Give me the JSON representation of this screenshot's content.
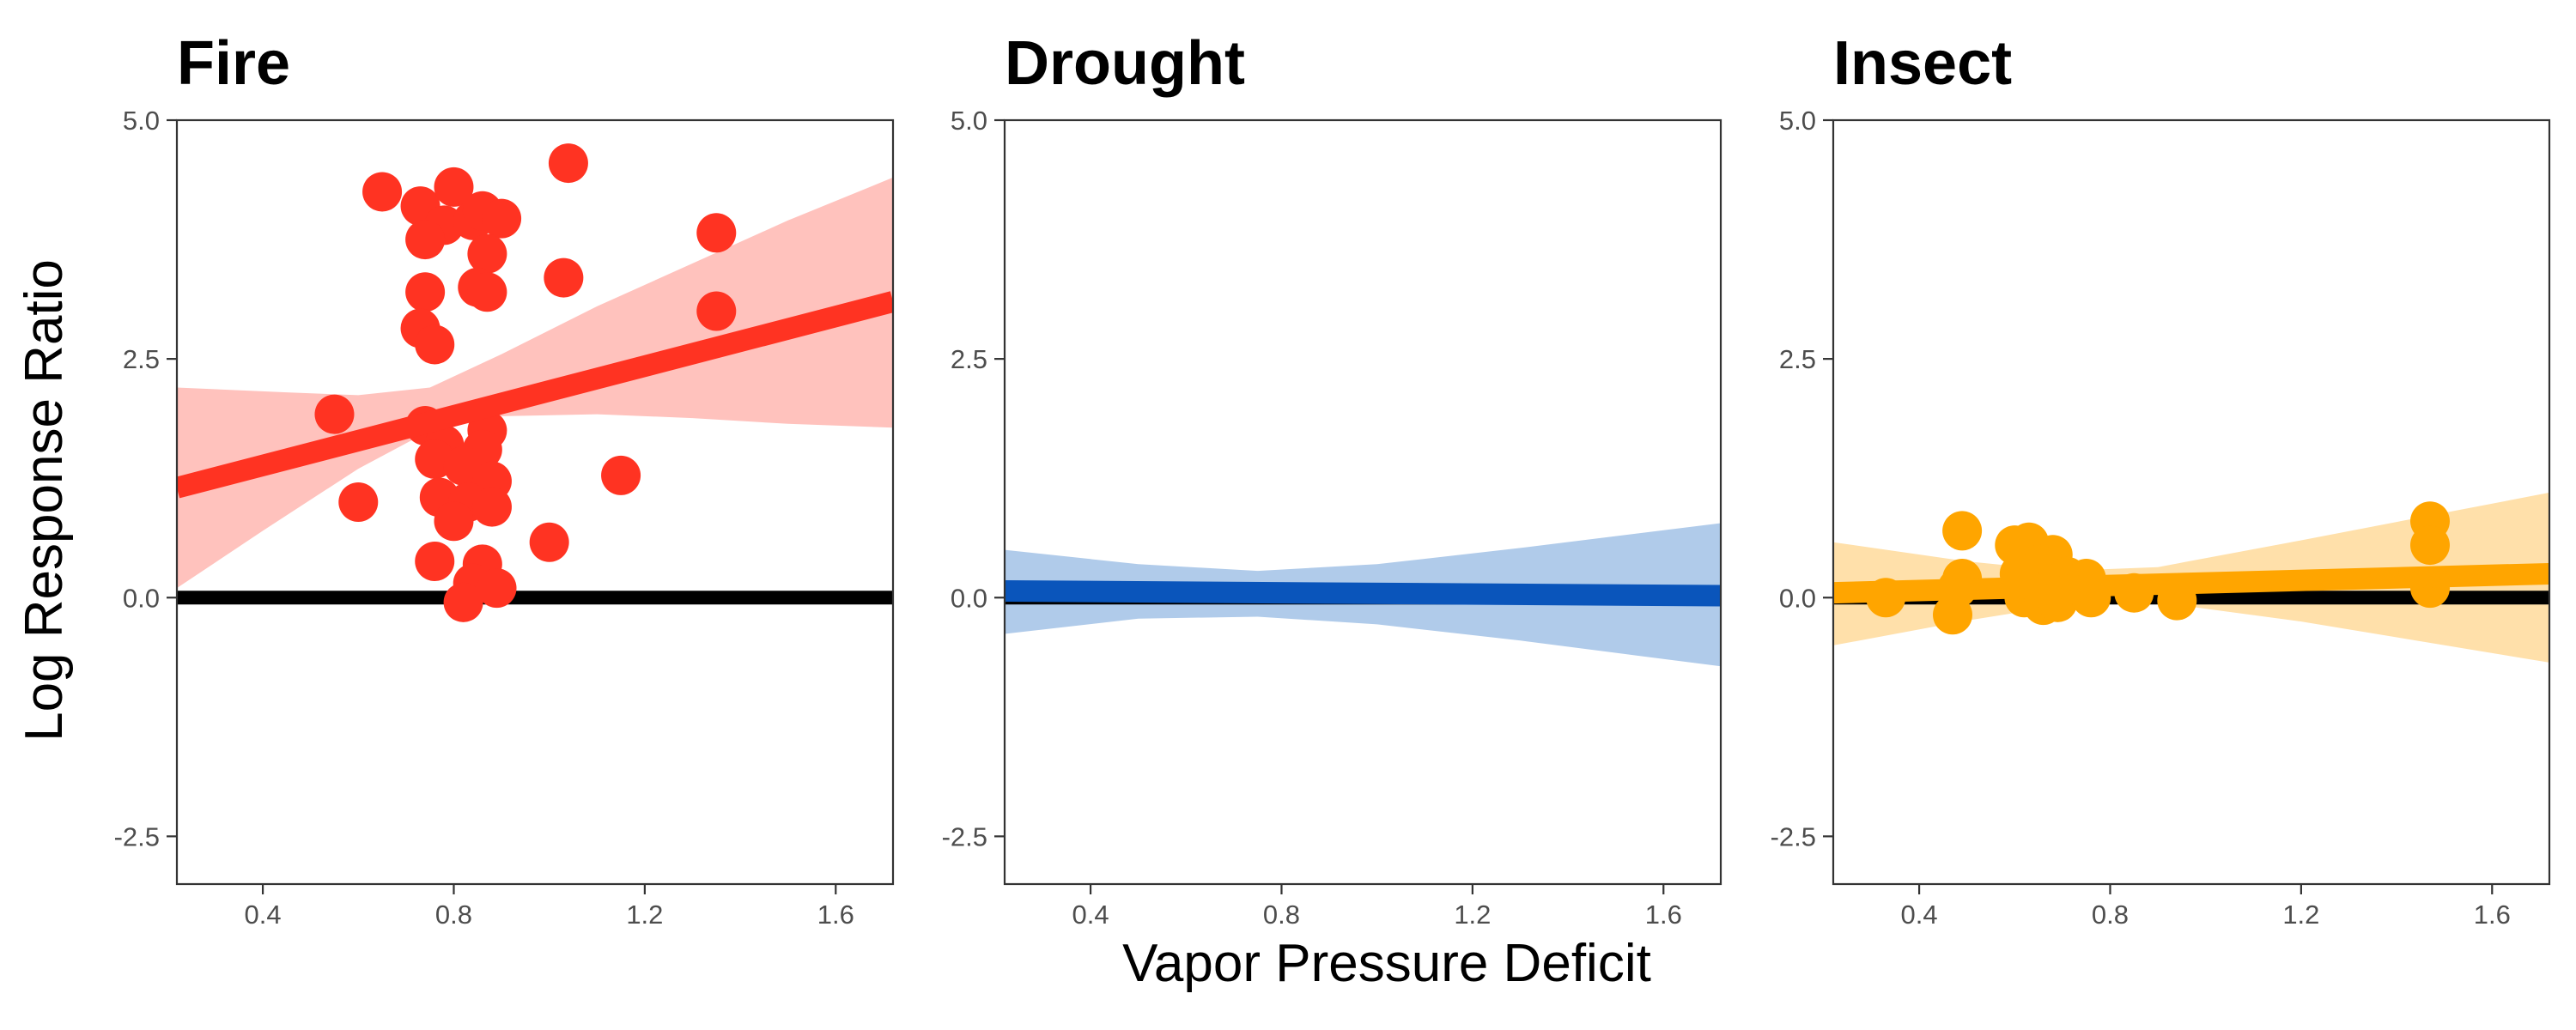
{
  "chart_data": {
    "type": "scatter",
    "ylabel": "Log Response Ratio",
    "xlabel": "Vapor Pressure Deficit",
    "xlim": [
      0.22,
      1.72
    ],
    "ylim": [
      -3.0,
      5.0
    ],
    "xticks": [
      0.4,
      0.8,
      1.2,
      1.6
    ],
    "yticks": [
      -2.5,
      0.0,
      2.5,
      5.0
    ],
    "xtick_labels": [
      "0.4",
      "0.8",
      "1.2",
      "1.6"
    ],
    "ytick_labels": [
      "-2.5",
      "0.0",
      "2.5",
      "5.0"
    ],
    "grid": false,
    "legend": "none",
    "reference_line_y": 0,
    "panels": [
      {
        "title": "Fire",
        "color": "#ff3322",
        "band_color": "#ffc2bd",
        "fit": {
          "x": [
            0.22,
            1.72
          ],
          "y": [
            1.15,
            3.1
          ]
        },
        "ci_upper": [
          [
            0.22,
            2.2
          ],
          [
            0.45,
            2.15
          ],
          [
            0.6,
            2.12
          ],
          [
            0.75,
            2.2
          ],
          [
            0.9,
            2.55
          ],
          [
            1.1,
            3.05
          ],
          [
            1.3,
            3.5
          ],
          [
            1.5,
            3.95
          ],
          [
            1.72,
            4.4
          ]
        ],
        "ci_lower": [
          [
            0.22,
            0.1
          ],
          [
            0.4,
            0.7
          ],
          [
            0.6,
            1.35
          ],
          [
            0.75,
            1.75
          ],
          [
            0.9,
            1.9
          ],
          [
            1.1,
            1.92
          ],
          [
            1.3,
            1.88
          ],
          [
            1.5,
            1.82
          ],
          [
            1.72,
            1.78
          ]
        ],
        "points": [
          [
            0.65,
            4.25
          ],
          [
            0.73,
            4.1
          ],
          [
            0.8,
            4.3
          ],
          [
            0.78,
            3.9
          ],
          [
            0.84,
            3.95
          ],
          [
            0.86,
            4.05
          ],
          [
            0.9,
            3.97
          ],
          [
            0.74,
            3.75
          ],
          [
            0.87,
            3.6
          ],
          [
            1.04,
            4.55
          ],
          [
            1.35,
            3.82
          ],
          [
            1.03,
            3.35
          ],
          [
            0.74,
            3.2
          ],
          [
            0.85,
            3.25
          ],
          [
            0.87,
            3.2
          ],
          [
            1.35,
            3.0
          ],
          [
            0.73,
            2.82
          ],
          [
            0.76,
            2.65
          ],
          [
            0.55,
            1.92
          ],
          [
            0.74,
            1.8
          ],
          [
            0.87,
            1.75
          ],
          [
            0.78,
            1.6
          ],
          [
            0.86,
            1.55
          ],
          [
            0.76,
            1.45
          ],
          [
            0.82,
            1.38
          ],
          [
            1.15,
            1.28
          ],
          [
            0.88,
            1.22
          ],
          [
            0.77,
            1.05
          ],
          [
            0.83,
            1.0
          ],
          [
            0.88,
            0.95
          ],
          [
            0.6,
            1.0
          ],
          [
            0.8,
            0.8
          ],
          [
            1.0,
            0.58
          ],
          [
            0.76,
            0.38
          ],
          [
            0.86,
            0.35
          ],
          [
            0.84,
            0.15
          ],
          [
            0.89,
            0.1
          ],
          [
            0.82,
            -0.05
          ]
        ]
      },
      {
        "title": "Drought",
        "color": "#0a55bb",
        "band_color": "#b0cbea",
        "fit": {
          "x": [
            0.22,
            1.72
          ],
          "y": [
            0.07,
            0.02
          ]
        },
        "ci_upper": [
          [
            0.22,
            0.5
          ],
          [
            0.5,
            0.35
          ],
          [
            0.75,
            0.28
          ],
          [
            1.0,
            0.35
          ],
          [
            1.3,
            0.52
          ],
          [
            1.72,
            0.78
          ]
        ],
        "ci_lower": [
          [
            0.22,
            -0.38
          ],
          [
            0.5,
            -0.22
          ],
          [
            0.75,
            -0.2
          ],
          [
            1.0,
            -0.28
          ],
          [
            1.3,
            -0.45
          ],
          [
            1.72,
            -0.72
          ]
        ],
        "points": []
      },
      {
        "title": "Insect",
        "color": "#ffa500",
        "band_color": "#ffe0aa",
        "fit": {
          "x": [
            0.22,
            1.72
          ],
          "y": [
            0.05,
            0.25
          ]
        },
        "ci_upper": [
          [
            0.22,
            0.58
          ],
          [
            0.5,
            0.38
          ],
          [
            0.7,
            0.28
          ],
          [
            0.9,
            0.32
          ],
          [
            1.2,
            0.6
          ],
          [
            1.72,
            1.1
          ]
        ],
        "ci_lower": [
          [
            0.22,
            -0.5
          ],
          [
            0.5,
            -0.24
          ],
          [
            0.7,
            -0.08
          ],
          [
            0.9,
            -0.05
          ],
          [
            1.2,
            -0.25
          ],
          [
            1.72,
            -0.68
          ]
        ],
        "points": [
          [
            0.49,
            0.7
          ],
          [
            0.6,
            0.55
          ],
          [
            0.63,
            0.58
          ],
          [
            0.68,
            0.45
          ],
          [
            0.65,
            0.35
          ],
          [
            0.61,
            0.25
          ],
          [
            0.71,
            0.22
          ],
          [
            0.75,
            0.2
          ],
          [
            0.49,
            0.2
          ],
          [
            0.48,
            0.1
          ],
          [
            0.33,
            0.0
          ],
          [
            0.47,
            -0.18
          ],
          [
            0.62,
            0.0
          ],
          [
            0.66,
            -0.08
          ],
          [
            0.69,
            -0.05
          ],
          [
            0.76,
            0.0
          ],
          [
            0.85,
            0.05
          ],
          [
            0.94,
            -0.03
          ],
          [
            1.47,
            0.8
          ],
          [
            1.47,
            0.55
          ],
          [
            1.47,
            0.1
          ]
        ]
      }
    ]
  }
}
